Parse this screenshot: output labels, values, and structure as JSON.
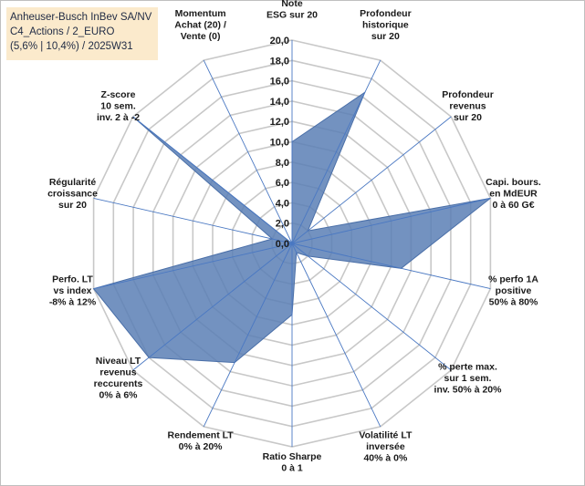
{
  "title": {
    "line1": "Anheuser-Busch InBev SA/NV",
    "line2": "C4_Actions / 2_EURO",
    "line3": "(5,6% | 10,4%) / 2025W31"
  },
  "chart_data": {
    "type": "radar",
    "r_min": 0,
    "r_max": 20,
    "r_step": 2,
    "tick_labels": [
      "0,0",
      "2,0",
      "4,0",
      "6,0",
      "8,0",
      "10,0",
      "12,0",
      "14,0",
      "16,0",
      "18,0",
      "20,0"
    ],
    "axes": [
      {
        "label": [
          "Note",
          "ESG sur 20"
        ],
        "value": 10
      },
      {
        "label": [
          "Profondeur",
          "historique",
          "sur 20"
        ],
        "value": 16.5
      },
      {
        "label": [
          "Profondeur",
          "revenus",
          "sur 20"
        ],
        "value": 2
      },
      {
        "label": [
          "Capi. bours.",
          "en MdEUR",
          "0 à 60 G€"
        ],
        "value": 20
      },
      {
        "label": [
          "% perfo 1A",
          "positive",
          "50% à 80%"
        ],
        "value": 11
      },
      {
        "label": [
          "% perte max.",
          "sur 1 sem.",
          "inv. 50% à 20%"
        ],
        "value": 2
      },
      {
        "label": [
          "Volatilité LT",
          "inversée",
          "40% à 0%"
        ],
        "value": 1
      },
      {
        "label": [
          "Ratio Sharpe",
          "0 à 1"
        ],
        "value": 7
      },
      {
        "label": [
          "Rendement LT",
          "0% à 20%"
        ],
        "value": 13
      },
      {
        "label": [
          "Niveau LT",
          "revenus",
          "reccurents",
          "0% à 6%"
        ],
        "value": 18
      },
      {
        "label": [
          "Perfo. LT",
          "vs index",
          "-8% à 12%"
        ],
        "value": 20
      },
      {
        "label": [
          "Régularité",
          "croissance",
          "sur 20"
        ],
        "value": 2
      },
      {
        "label": [
          "Z-score",
          "10 sem.",
          "inv. 2 à -2"
        ],
        "value": 20
      },
      {
        "label": [
          "Momentum",
          "Achat (20) /",
          "Vente (0)"
        ],
        "value": 0
      }
    ],
    "colors": {
      "fill": "#5b7fb5",
      "stroke": "#4a6fa8",
      "grid": "#c8c8c8",
      "spoke": "#4a78c2"
    }
  }
}
